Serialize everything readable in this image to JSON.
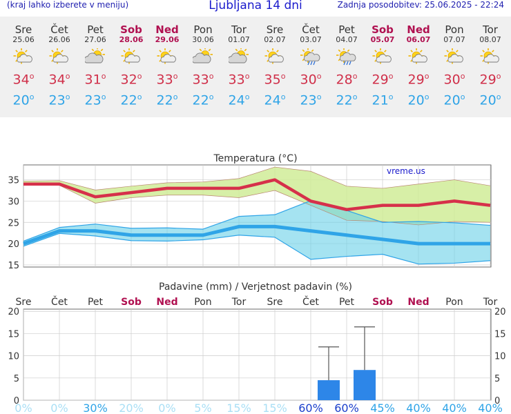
{
  "header": {
    "left_note": "(kraj lahko izberete v meniju)",
    "title": "Ljubljana 14 dni",
    "updated": "Zadnja posodobitev: 25.06.2025 - 22:24"
  },
  "days": [
    {
      "name": "Sre",
      "date": "25.06",
      "weekend": false,
      "icon": "sun-cloud-icon",
      "tmax": "34",
      "tmin": "20"
    },
    {
      "name": "Čet",
      "date": "26.06",
      "weekend": false,
      "icon": "sun-cloud-icon",
      "tmax": "34",
      "tmin": "23"
    },
    {
      "name": "Pet",
      "date": "27.06",
      "weekend": false,
      "icon": "cloud-sun-icon",
      "tmax": "31",
      "tmin": "23"
    },
    {
      "name": "Sob",
      "date": "28.06",
      "weekend": true,
      "icon": "sun-cloud-icon",
      "tmax": "32",
      "tmin": "22"
    },
    {
      "name": "Ned",
      "date": "29.06",
      "weekend": true,
      "icon": "sun-cloud-icon",
      "tmax": "33",
      "tmin": "22"
    },
    {
      "name": "Pon",
      "date": "30.06",
      "weekend": false,
      "icon": "cloud-sun-icon",
      "tmax": "33",
      "tmin": "22"
    },
    {
      "name": "Tor",
      "date": "01.07",
      "weekend": false,
      "icon": "cloud-sun-icon",
      "tmax": "33",
      "tmin": "24"
    },
    {
      "name": "Sre",
      "date": "02.07",
      "weekend": false,
      "icon": "sun-cloud-icon",
      "tmax": "35",
      "tmin": "24"
    },
    {
      "name": "Čet",
      "date": "03.07",
      "weekend": false,
      "icon": "sun-rain-icon",
      "tmax": "30",
      "tmin": "23"
    },
    {
      "name": "Pet",
      "date": "04.07",
      "weekend": false,
      "icon": "sun-rain-icon",
      "tmax": "28",
      "tmin": "22"
    },
    {
      "name": "Sob",
      "date": "05.07",
      "weekend": true,
      "icon": "sun-cloud-icon",
      "tmax": "29",
      "tmin": "21"
    },
    {
      "name": "Ned",
      "date": "06.07",
      "weekend": true,
      "icon": "sun-cloud-icon",
      "tmax": "29",
      "tmin": "20"
    },
    {
      "name": "Pon",
      "date": "07.07",
      "weekend": false,
      "icon": "sun-cloud-icon",
      "tmax": "30",
      "tmin": "20"
    },
    {
      "name": "Tor",
      "date": "08.07",
      "weekend": false,
      "icon": "sun-cloud-icon",
      "tmax": "29",
      "tmin": "20"
    }
  ],
  "chart_data": [
    {
      "type": "line",
      "title": "Temperatura (°C)",
      "watermark": "vreme.us",
      "ylim": [
        14.5,
        38.5
      ],
      "yticks": [
        15,
        20,
        25,
        30,
        35
      ],
      "grid": true,
      "series": [
        {
          "role": "max",
          "values": [
            34,
            34,
            31,
            32,
            33,
            33,
            33,
            35,
            30,
            28,
            29,
            29,
            30,
            29
          ],
          "color": "#d6304a"
        },
        {
          "role": "max-range-high",
          "values": [
            34.7,
            34.8,
            32.6,
            33.5,
            34.3,
            34.5,
            35.3,
            38,
            37,
            33.5,
            33,
            34,
            35,
            33.6
          ]
        },
        {
          "role": "max-range-low",
          "values": [
            33.8,
            33.7,
            29.5,
            30.8,
            31.4,
            31.4,
            30.8,
            32.5,
            29,
            25.5,
            25.2,
            24.4,
            25.2,
            25
          ]
        },
        {
          "role": "min",
          "values": [
            20,
            23,
            23,
            22,
            22,
            22,
            24,
            24,
            23,
            22,
            21,
            20,
            20,
            20
          ],
          "color": "#2fa4e7"
        },
        {
          "role": "min-range-high",
          "values": [
            20.6,
            23.8,
            24.6,
            23.6,
            23.7,
            23.4,
            26.4,
            26.8,
            30.1,
            27.8,
            25,
            25.2,
            24.9,
            24.3
          ]
        },
        {
          "role": "min-range-low",
          "values": [
            19.4,
            22.4,
            21.8,
            20.7,
            20.6,
            20.9,
            22,
            21.5,
            16.3,
            17,
            17.5,
            15.2,
            15.4,
            16
          ]
        }
      ]
    },
    {
      "type": "bar",
      "title": "Padavine (mm) / Verjetnost padavin (%)",
      "ylim": [
        0,
        20.5
      ],
      "yticks": [
        0,
        5,
        10,
        15,
        20
      ],
      "grid": true,
      "values": [
        0,
        0,
        0,
        0,
        0,
        0,
        0,
        0,
        4.5,
        6.8,
        0,
        0,
        0,
        0
      ],
      "error_high": [
        null,
        null,
        null,
        null,
        null,
        null,
        null,
        null,
        12,
        16.5,
        null,
        null,
        null,
        null
      ],
      "probability": [
        "0%",
        "0%",
        "30%",
        "20%",
        "0%",
        "5%",
        "15%",
        "15%",
        "60%",
        "60%",
        "45%",
        "40%",
        "40%",
        "40%"
      ],
      "colors": {
        "bar": "#2d86e8",
        "prob_low": "#a9dff5",
        "prob_mid": "#2fa4e7",
        "prob_high": "#1a3fcc"
      }
    }
  ]
}
